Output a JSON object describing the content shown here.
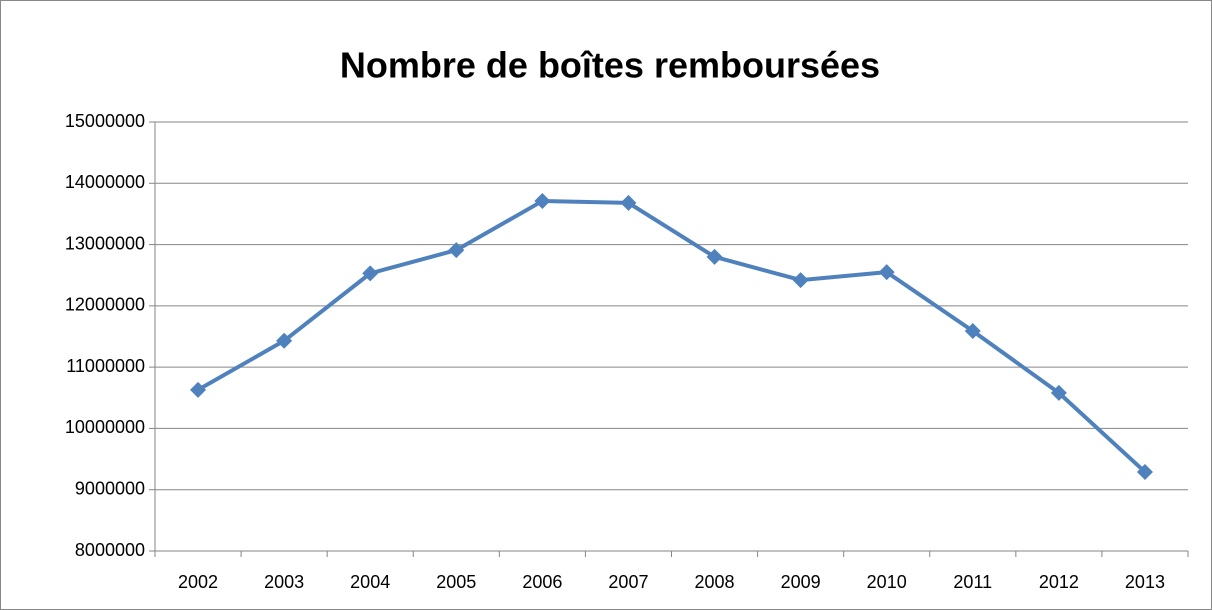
{
  "chart_data": {
    "type": "line",
    "title": "Nombre de boîtes remboursées",
    "categories": [
      "2002",
      "2003",
      "2004",
      "2005",
      "2006",
      "2007",
      "2008",
      "2009",
      "2010",
      "2011",
      "2012",
      "2013"
    ],
    "series": [
      {
        "name": "Nombre de boîtes remboursées",
        "color": "#4f81bd",
        "values": [
          10630000,
          11430000,
          12530000,
          12910000,
          13710000,
          13680000,
          12800000,
          12420000,
          12550000,
          11590000,
          10580000,
          9290000
        ]
      }
    ],
    "ylim": [
      8000000,
      15000000
    ],
    "yticks": [
      8000000,
      9000000,
      10000000,
      11000000,
      12000000,
      13000000,
      14000000,
      15000000
    ],
    "grid": true,
    "legend": false
  }
}
